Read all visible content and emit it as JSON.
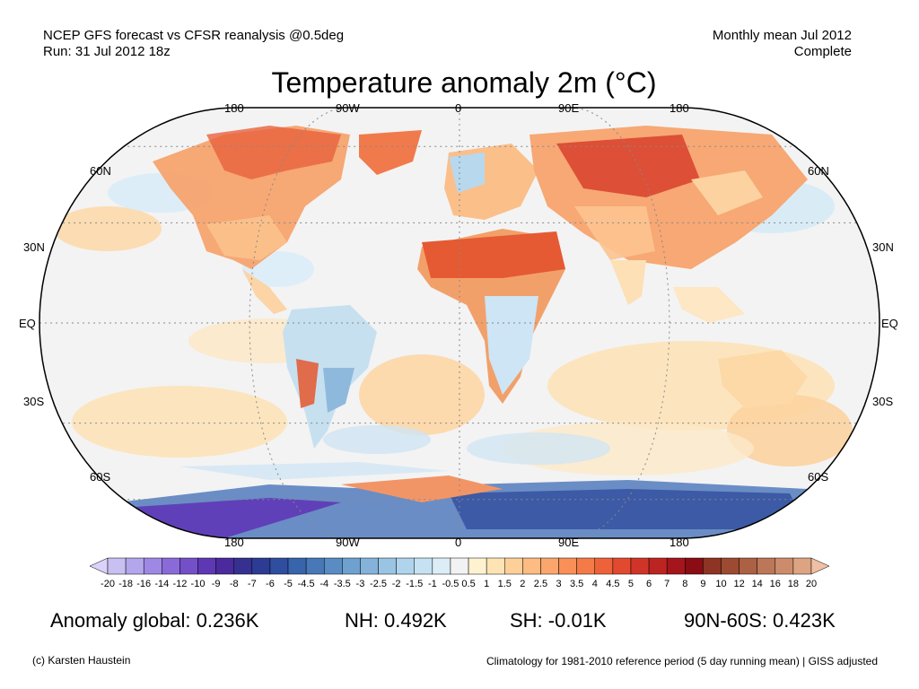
{
  "header": {
    "left_line1": "NCEP GFS forecast vs CFSR reanalysis @0.5deg",
    "left_line2": "Run: 31 Jul 2012 18z",
    "right_line1": "Monthly mean Jul 2012",
    "right_line2": "Complete"
  },
  "title": "Temperature anomaly 2m (°C)",
  "axes": {
    "lon_top": [
      "180",
      "90W",
      "0",
      "90E",
      "180"
    ],
    "lon_bottom": [
      "180",
      "90W",
      "0",
      "90E",
      "180"
    ],
    "lat_left": [
      "60N",
      "30N",
      "EQ",
      "30S",
      "60S"
    ],
    "lat_right": [
      "60N",
      "30N",
      "EQ",
      "30S",
      "60S"
    ]
  },
  "colorbar": {
    "labels": [
      "-20",
      "-18",
      "-16",
      "-14",
      "-12",
      "-10",
      "-9",
      "-8",
      "-7",
      "-6",
      "-5",
      "-4.5",
      "-4",
      "-3.5",
      "-3",
      "-2.5",
      "-2",
      "-1.5",
      "-1",
      "-0.5",
      "0.5",
      "1",
      "1.5",
      "2",
      "2.5",
      "3",
      "3.5",
      "4",
      "4.5",
      "5",
      "6",
      "7",
      "8",
      "9",
      "10",
      "12",
      "14",
      "16",
      "18",
      "20"
    ],
    "colors": [
      "#c8c0f0",
      "#b4a6ec",
      "#9f88e4",
      "#8a6ad8",
      "#7450c8",
      "#5e38b4",
      "#4a2a9c",
      "#363090",
      "#2c3c94",
      "#2f4ea0",
      "#3864ac",
      "#4878b8",
      "#5a8cc4",
      "#6ea0d0",
      "#84b2da",
      "#9ac4e4",
      "#b0d4ec",
      "#c6e2f2",
      "#dcedf8",
      "#f2f2f2",
      "#fff2d0",
      "#fee4b4",
      "#fdd09a",
      "#fcbc82",
      "#faa66c",
      "#f89058",
      "#f47a48",
      "#ee623a",
      "#e24a30",
      "#d03428",
      "#bc2422",
      "#a4161c",
      "#8a0c14",
      "#8e3424",
      "#9c4a32",
      "#ac6044",
      "#bc7658",
      "#cc8c6c",
      "#dca482"
    ],
    "left_arrow_color": "#dad2f8",
    "right_arrow_color": "#f0c0a4"
  },
  "stats": {
    "global": "Anomaly global: 0.236K",
    "nh": "NH: 0.492K",
    "sh": "SH: -0.01K",
    "polar": "90N-60S: 0.423K"
  },
  "footer": {
    "credit": "(c) Karsten Haustein",
    "note": "Climatology for 1981-2010 reference period (5 day running mean) | GISS adjusted"
  }
}
